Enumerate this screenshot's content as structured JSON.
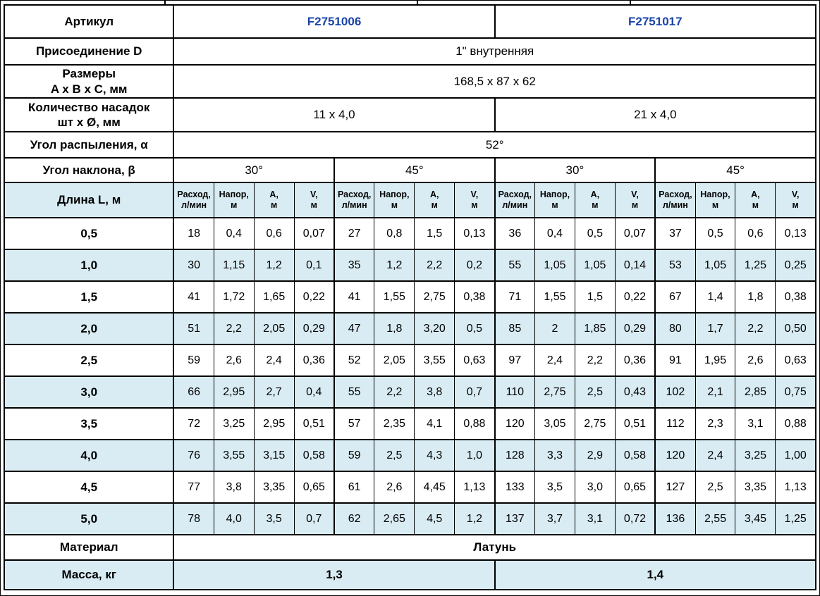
{
  "table": {
    "colors": {
      "article_accent": "#1a44a8",
      "alt_row_background": "#d9ecf3",
      "border": "#000000"
    },
    "spec_rows": {
      "article": {
        "label": "Артикул",
        "values": [
          "F2751006",
          "F2751017"
        ]
      },
      "connection": {
        "label": "Присоединение D",
        "value": "1\" внутренняя"
      },
      "dimensions": {
        "label": "Размеры\nA x B x C, мм",
        "value": "168,5 x 87 x 62"
      },
      "nozzles": {
        "label": "Количество насадок\nшт x Ø, мм",
        "values": [
          "11 x 4,0",
          "21 x 4,0"
        ]
      },
      "spray_angle": {
        "label": "Угол распыления, α",
        "value": "52°"
      },
      "tilt_angle": {
        "label": "Угол наклона, β",
        "values": [
          "30°",
          "45°",
          "30°",
          "45°"
        ]
      },
      "material": {
        "label": "Материал",
        "value": "Латунь"
      },
      "mass": {
        "label": "Масса, кг",
        "values": [
          "1,3",
          "1,4"
        ]
      }
    },
    "data_header": {
      "length_label": "Длина L, м",
      "sub_columns": [
        "Расход,\nл/мин",
        "Напор,\nм",
        "А,\nм",
        "V,\nм"
      ]
    },
    "data_rows": [
      {
        "length": "0,5",
        "cells": [
          "18",
          "0,4",
          "0,6",
          "0,07",
          "27",
          "0,8",
          "1,5",
          "0,13",
          "36",
          "0,4",
          "0,5",
          "0,07",
          "37",
          "0,5",
          "0,6",
          "0,13"
        ]
      },
      {
        "length": "1,0",
        "cells": [
          "30",
          "1,15",
          "1,2",
          "0,1",
          "35",
          "1,2",
          "2,2",
          "0,2",
          "55",
          "1,05",
          "1,05",
          "0,14",
          "53",
          "1,05",
          "1,25",
          "0,25"
        ]
      },
      {
        "length": "1,5",
        "cells": [
          "41",
          "1,72",
          "1,65",
          "0,22",
          "41",
          "1,55",
          "2,75",
          "0,38",
          "71",
          "1,55",
          "1,5",
          "0,22",
          "67",
          "1,4",
          "1,8",
          "0,38"
        ]
      },
      {
        "length": "2,0",
        "cells": [
          "51",
          "2,2",
          "2,05",
          "0,29",
          "47",
          "1,8",
          "3,20",
          "0,5",
          "85",
          "2",
          "1,85",
          "0,29",
          "80",
          "1,7",
          "2,2",
          "0,50"
        ]
      },
      {
        "length": "2,5",
        "cells": [
          "59",
          "2,6",
          "2,4",
          "0,36",
          "52",
          "2,05",
          "3,55",
          "0,63",
          "97",
          "2,4",
          "2,2",
          "0,36",
          "91",
          "1,95",
          "2,6",
          "0,63"
        ]
      },
      {
        "length": "3,0",
        "cells": [
          "66",
          "2,95",
          "2,7",
          "0,4",
          "55",
          "2,2",
          "3,8",
          "0,7",
          "110",
          "2,75",
          "2,5",
          "0,43",
          "102",
          "2,1",
          "2,85",
          "0,75"
        ]
      },
      {
        "length": "3,5",
        "cells": [
          "72",
          "3,25",
          "2,95",
          "0,51",
          "57",
          "2,35",
          "4,1",
          "0,88",
          "120",
          "3,05",
          "2,75",
          "0,51",
          "112",
          "2,3",
          "3,1",
          "0,88"
        ]
      },
      {
        "length": "4,0",
        "cells": [
          "76",
          "3,55",
          "3,15",
          "0,58",
          "59",
          "2,5",
          "4,3",
          "1,0",
          "128",
          "3,3",
          "2,9",
          "0,58",
          "120",
          "2,4",
          "3,25",
          "1,00"
        ]
      },
      {
        "length": "4,5",
        "cells": [
          "77",
          "3,8",
          "3,35",
          "0,65",
          "61",
          "2,6",
          "4,45",
          "1,13",
          "133",
          "3,5",
          "3,0",
          "0,65",
          "127",
          "2,5",
          "3,35",
          "1,13"
        ]
      },
      {
        "length": "5,0",
        "cells": [
          "78",
          "4,0",
          "3,5",
          "0,7",
          "62",
          "2,65",
          "4,5",
          "1,2",
          "137",
          "3,7",
          "3,1",
          "0,72",
          "136",
          "2,55",
          "3,45",
          "1,25"
        ]
      }
    ]
  }
}
